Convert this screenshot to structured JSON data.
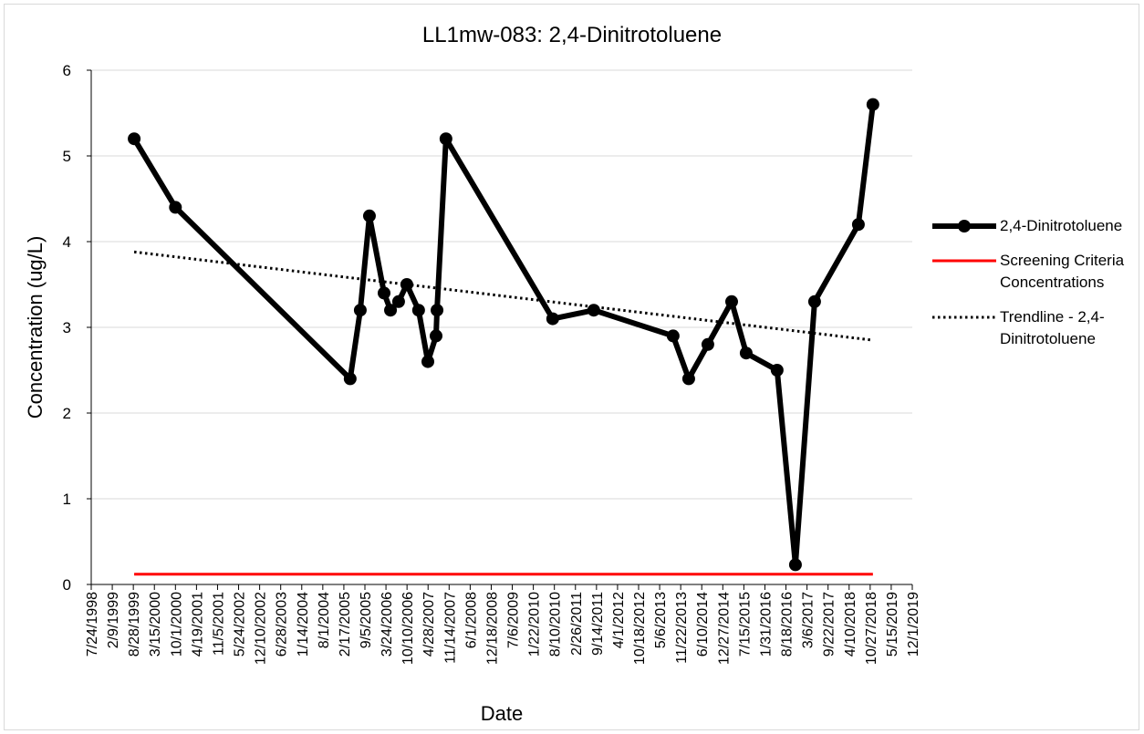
{
  "chart_data": {
    "type": "line",
    "title": "LL1mw-083: 2,4-Dinitrotoluene",
    "xlabel": "Date",
    "ylabel": "Concentration (ug/L)",
    "xlim": [
      "7/24/1998",
      "12/1/2019"
    ],
    "xticks": [
      "7/24/1998",
      "2/9/1999",
      "8/28/1999",
      "3/15/2000",
      "10/1/2000",
      "4/19/2001",
      "11/5/2001",
      "5/24/2002",
      "12/10/2002",
      "6/28/2003",
      "1/14/2004",
      "8/1/2004",
      "2/17/2005",
      "9/5/2005",
      "3/24/2006",
      "10/10/2006",
      "4/28/2007",
      "11/14/2007",
      "6/1/2008",
      "12/18/2008",
      "7/6/2009",
      "1/22/2010",
      "8/10/2010",
      "2/26/2011",
      "9/14/2011",
      "4/1/2012",
      "10/18/2012",
      "5/6/2013",
      "11/22/2013",
      "6/10/2014",
      "12/27/2014",
      "7/15/2015",
      "1/31/2016",
      "8/18/2016",
      "3/6/2017",
      "9/22/2017",
      "4/10/2018",
      "10/27/2018",
      "5/15/2019",
      "12/1/2019"
    ],
    "ylim": [
      0,
      6
    ],
    "yticks": [
      0,
      1,
      2,
      3,
      4,
      5,
      6
    ],
    "grid": true,
    "legend": "right",
    "series": [
      {
        "name": "2,4-Dinitrotoluene",
        "color": "#000000",
        "style": "line-markers",
        "x": [
          "9/5/1999",
          "10/1/2000",
          "4/18/2005",
          "7/23/2005",
          "10/18/2005",
          "3/6/2006",
          "5/6/2006",
          "7/22/2006",
          "10/8/2006",
          "1/28/2007",
          "4/26/2007",
          "7/13/2007",
          "7/22/2007",
          "10/15/2007",
          "7/25/2010",
          "8/19/2011",
          "9/11/2013",
          "2/6/2014",
          "8/7/2014",
          "3/21/2015",
          "8/6/2015",
          "5/26/2016",
          "11/16/2016",
          "5/17/2017",
          "7/7/2018",
          "11/22/2018"
        ],
        "values": [
          5.2,
          4.4,
          2.4,
          3.2,
          4.3,
          3.4,
          3.2,
          3.3,
          3.5,
          3.2,
          2.6,
          2.9,
          3.2,
          5.2,
          3.1,
          3.2,
          2.9,
          2.4,
          2.8,
          3.3,
          2.7,
          2.5,
          0.23,
          3.3,
          4.2,
          5.6
        ]
      },
      {
        "name": "Screening Criteria Concentrations",
        "color": "#ff0000",
        "style": "line",
        "x": [
          "9/5/1999",
          "11/22/2018"
        ],
        "values": [
          0.12,
          0.12
        ]
      },
      {
        "name": "Trendline - 2,4-Dinitrotoluene",
        "color": "#000000",
        "style": "dotted",
        "x": [
          "9/5/1999",
          "11/22/2018"
        ],
        "values": [
          3.88,
          2.85
        ]
      }
    ]
  }
}
